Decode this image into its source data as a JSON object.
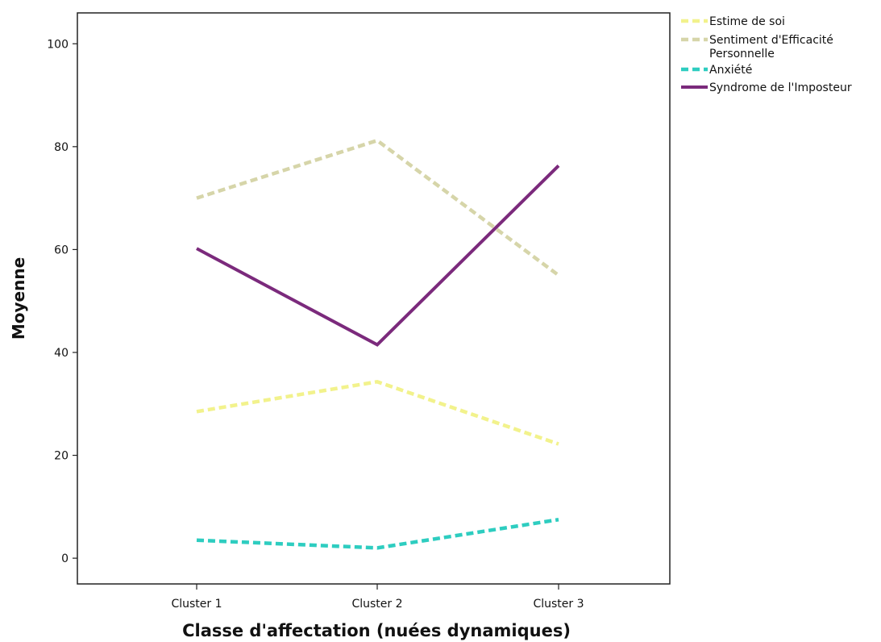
{
  "chart_data": {
    "type": "line",
    "title": "",
    "xlabel": "Classe d'affectation (nuées dynamiques)",
    "ylabel": "Moyenne",
    "categories": [
      "Cluster 1",
      "Cluster 2",
      "Cluster 3"
    ],
    "ylim": [
      -5,
      106
    ],
    "yticks": [
      0,
      20,
      40,
      60,
      80,
      100
    ],
    "grid": false,
    "legend": "top-right",
    "series": [
      {
        "name": "Estime de soi",
        "line_labels": [
          "Estime de soi"
        ],
        "values": [
          28.5,
          34.3,
          22.2
        ],
        "color": "#f2f28c",
        "style": "dashed"
      },
      {
        "name": "Sentiment d'Efficacité Personnelle",
        "line_labels": [
          "Sentiment d'Efficacité",
          "Personnelle"
        ],
        "values": [
          70.0,
          81.2,
          55.0
        ],
        "color": "#d6d5a9",
        "style": "dashed"
      },
      {
        "name": "Anxiété",
        "line_labels": [
          "Anxiété"
        ],
        "values": [
          3.5,
          2.0,
          7.5
        ],
        "color": "#2ecdc0",
        "style": "dashed"
      },
      {
        "name": "Syndrome de l'Imposteur",
        "line_labels": [
          "Syndrome de l'Imposteur"
        ],
        "values": [
          60.2,
          41.5,
          76.3
        ],
        "color": "#7b2a7c",
        "style": "solid"
      }
    ]
  }
}
